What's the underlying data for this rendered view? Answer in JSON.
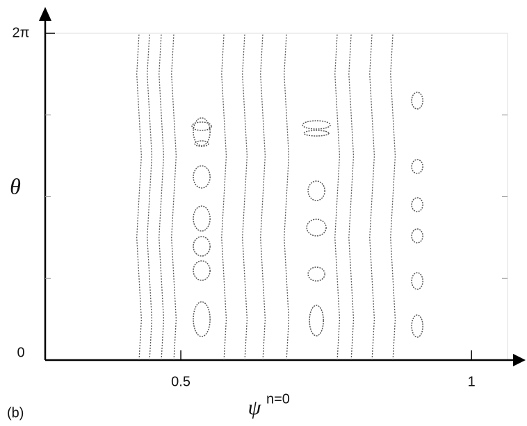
{
  "chart_data": {
    "type": "poincare",
    "panel_label": "(b)",
    "x_label": "ψ",
    "x_label_superscript": "n=0",
    "y_label": "θ",
    "xlim": [
      0.2667,
      1.062
    ],
    "xticks": [
      0.5,
      1
    ],
    "ylim": [
      0,
      6.2832
    ],
    "yticks": [
      0,
      {
        "value": 6.2832,
        "label": "2π"
      }
    ],
    "minor_yticks": [
      1.5708,
      3.1416,
      4.7124
    ],
    "color": "#555555",
    "series": [
      {
        "x": [
          0.4282,
          0.4322,
          0.4282,
          0.4242,
          0.4282,
          0.4322,
          0.4282,
          0.4242,
          0.4282
        ],
        "y": [
          0,
          0.785,
          1.571,
          2.356,
          3.142,
          3.927,
          4.712,
          5.498,
          6.283
        ]
      },
      {
        "x": [
          0.4462,
          0.4502,
          0.4462,
          0.4422,
          0.4462,
          0.4502,
          0.4462,
          0.4422,
          0.4462
        ],
        "y": [
          0,
          0.785,
          1.571,
          2.356,
          3.142,
          3.927,
          4.712,
          5.498,
          6.283
        ]
      },
      {
        "x": [
          0.4665,
          0.4705,
          0.4665,
          0.4625,
          0.4665,
          0.4705,
          0.4665,
          0.4625,
          0.4665
        ],
        "y": [
          0,
          0.785,
          1.571,
          2.356,
          3.142,
          3.927,
          4.712,
          5.498,
          6.283
        ]
      },
      {
        "x": [
          0.488,
          0.492,
          0.488,
          0.484,
          0.488,
          0.492,
          0.488,
          0.484,
          0.488
        ],
        "y": [
          0,
          0.785,
          1.571,
          2.356,
          3.142,
          3.927,
          4.712,
          5.498,
          6.283
        ]
      },
      {
        "x": [
          0.5742,
          0.5782,
          0.5742,
          0.5702,
          0.5742,
          0.5782,
          0.5742,
          0.5702,
          0.5742
        ],
        "y": [
          0,
          0.785,
          1.571,
          2.356,
          3.142,
          3.927,
          4.712,
          5.498,
          6.283
        ]
      },
      {
        "x": [
          0.61,
          0.614,
          0.61,
          0.606,
          0.61,
          0.614,
          0.61,
          0.606,
          0.61
        ],
        "y": [
          0,
          0.785,
          1.571,
          2.356,
          3.142,
          3.927,
          4.712,
          5.498,
          6.283
        ]
      },
      {
        "x": [
          0.6411,
          0.6451,
          0.6411,
          0.6371,
          0.6411,
          0.6451,
          0.6411,
          0.6371,
          0.6411
        ],
        "y": [
          0,
          0.785,
          1.571,
          2.356,
          3.142,
          3.927,
          4.712,
          5.498,
          6.283
        ]
      },
      {
        "x": [
          0.6818,
          0.6858,
          0.6818,
          0.6778,
          0.6818,
          0.6858,
          0.6818,
          0.6778,
          0.6818
        ],
        "y": [
          0,
          0.785,
          1.571,
          2.356,
          3.142,
          3.927,
          4.712,
          5.498,
          6.283
        ]
      },
      {
        "x": [
          0.7691,
          0.7731,
          0.7691,
          0.7651,
          0.7691,
          0.7731,
          0.7691,
          0.7651,
          0.7691
        ],
        "y": [
          0,
          0.785,
          1.571,
          2.356,
          3.142,
          3.927,
          4.712,
          5.498,
          6.283
        ]
      },
      {
        "x": [
          0.7931,
          0.7971,
          0.7931,
          0.7891,
          0.7931,
          0.7971,
          0.7931,
          0.7891,
          0.7931
        ],
        "y": [
          0,
          0.785,
          1.571,
          2.356,
          3.142,
          3.927,
          4.712,
          5.498,
          6.283
        ]
      },
      {
        "x": [
          0.8289,
          0.8329,
          0.8289,
          0.8249,
          0.8289,
          0.8329,
          0.8289,
          0.8249,
          0.8289
        ],
        "y": [
          0,
          0.785,
          1.571,
          2.356,
          3.142,
          3.927,
          4.712,
          5.498,
          6.283
        ]
      },
      {
        "x": [
          0.8648,
          0.8688,
          0.8648,
          0.8608,
          0.8648,
          0.8688,
          0.8648,
          0.8608,
          0.8648
        ],
        "y": [
          0,
          0.785,
          1.571,
          2.356,
          3.142,
          3.927,
          4.712,
          5.498,
          6.283
        ]
      }
    ],
    "islands": [
      {
        "x": 0.5359,
        "y": 4.389,
        "rx": 0.0144,
        "ry": 0.267
      },
      {
        "x": 0.5359,
        "y": 3.522,
        "rx": 0.0144,
        "ry": 0.213
      },
      {
        "x": 0.5359,
        "y": 2.721,
        "rx": 0.0144,
        "ry": 0.24
      },
      {
        "x": 0.5359,
        "y": 2.188,
        "rx": 0.0144,
        "ry": 0.187
      },
      {
        "x": 0.5359,
        "y": 1.721,
        "rx": 0.0144,
        "ry": 0.187
      },
      {
        "x": 0.5359,
        "y": 0.787,
        "rx": 0.0144,
        "ry": 0.334
      },
      {
        "x": 0.5359,
        "y": 4.496,
        "rx": 0.0167,
        "ry": 0.08
      },
      {
        "x": 0.5359,
        "y": 4.162,
        "rx": 0.012,
        "ry": 0.053
      },
      {
        "x": 0.7333,
        "y": 3.255,
        "rx": 0.0144,
        "ry": 0.187
      },
      {
        "x": 0.7333,
        "y": 2.548,
        "rx": 0.0167,
        "ry": 0.16
      },
      {
        "x": 0.7333,
        "y": 1.654,
        "rx": 0.0144,
        "ry": 0.133
      },
      {
        "x": 0.7333,
        "y": 0.76,
        "rx": 0.012,
        "ry": 0.293
      },
      {
        "x": 0.7333,
        "y": 4.522,
        "rx": 0.0239,
        "ry": 0.08
      },
      {
        "x": 0.7333,
        "y": 4.362,
        "rx": 0.0215,
        "ry": 0.053
      },
      {
        "x": 0.9067,
        "y": 4.989,
        "rx": 0.0096,
        "ry": 0.16
      },
      {
        "x": 0.9067,
        "y": 3.722,
        "rx": 0.0096,
        "ry": 0.133
      },
      {
        "x": 0.9067,
        "y": 2.988,
        "rx": 0.0096,
        "ry": 0.133
      },
      {
        "x": 0.9067,
        "y": 2.388,
        "rx": 0.0096,
        "ry": 0.133
      },
      {
        "x": 0.9067,
        "y": 1.521,
        "rx": 0.0096,
        "ry": 0.16
      },
      {
        "x": 0.9067,
        "y": 0.654,
        "rx": 0.0096,
        "ry": 0.213
      }
    ]
  }
}
